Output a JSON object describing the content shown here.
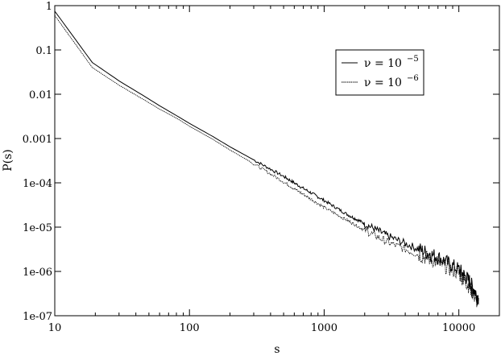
{
  "chart_data": {
    "type": "line",
    "title": "",
    "xlabel": "s",
    "ylabel": "P(s)",
    "xscale": "log",
    "yscale": "log",
    "xlim": [
      10,
      20000
    ],
    "ylim": [
      1e-07,
      1
    ],
    "grid": false,
    "legend_position": "top-right",
    "x_ticks": [
      {
        "value": 10,
        "label": "10"
      },
      {
        "value": 100,
        "label": "100"
      },
      {
        "value": 1000,
        "label": "1000"
      },
      {
        "value": 10000,
        "label": "10000"
      }
    ],
    "y_ticks": [
      {
        "value": 1,
        "label": "1"
      },
      {
        "value": 0.1,
        "label": "0.1"
      },
      {
        "value": 0.01,
        "label": "0.01"
      },
      {
        "value": 0.001,
        "label": "0.001"
      },
      {
        "value": 0.0001,
        "label": "1e-04"
      },
      {
        "value": 1e-05,
        "label": "1e-05"
      },
      {
        "value": 1e-06,
        "label": "1e-06"
      },
      {
        "value": 1e-07,
        "label": "1e-07"
      }
    ],
    "series": [
      {
        "legend_main": "ν = 10",
        "legend_exp": "−5",
        "style": "solid",
        "color": "#000000",
        "x": [
          10,
          19,
          30,
          45,
          60,
          80,
          100,
          150,
          200,
          300,
          500,
          700,
          1000,
          1500,
          2000,
          3000,
          5000,
          7000,
          10000,
          12000,
          14000
        ],
        "y": [
          0.75,
          0.052,
          0.02,
          0.0095,
          0.0055,
          0.0033,
          0.0022,
          0.0011,
          0.00065,
          0.00033,
          0.00014,
          7.5e-05,
          4e-05,
          1.9e-05,
          1.2e-05,
          6.2e-06,
          3.2e-06,
          2.1e-06,
          1.1e-06,
          6e-07,
          2.5e-07
        ]
      },
      {
        "legend_main": "ν = 10",
        "legend_exp": "−6",
        "style": "dotted",
        "color": "#000000",
        "x": [
          10,
          19,
          30,
          45,
          60,
          80,
          100,
          150,
          200,
          300,
          500,
          700,
          1000,
          1500,
          2000,
          3000,
          5000,
          7000,
          10000,
          12000,
          14000
        ],
        "y": [
          0.6,
          0.04,
          0.016,
          0.0078,
          0.0046,
          0.0029,
          0.0019,
          0.00095,
          0.00055,
          0.00027,
          0.000105,
          5.5e-05,
          2.8e-05,
          1.4e-05,
          8.5e-06,
          4.5e-06,
          2.4e-06,
          1.6e-06,
          9e-07,
          4.5e-07,
          1.8e-07
        ]
      }
    ]
  }
}
